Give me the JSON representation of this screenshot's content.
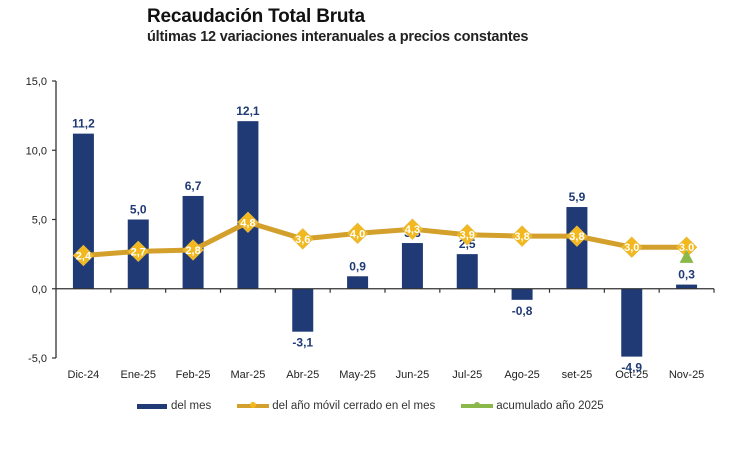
{
  "chart_data": {
    "type": "bar",
    "title": "Recaudación Total Bruta",
    "subtitle": "últimas 12 variaciones interanuales a precios constantes",
    "xlabel": "",
    "ylabel": "",
    "ylim": [
      -5,
      15
    ],
    "yticks": [
      -5,
      0,
      5,
      10,
      15
    ],
    "ytick_labels": [
      "-5,0",
      "0,0",
      "5,0",
      "10,0",
      "15,0"
    ],
    "grid": false,
    "legend_position": "bottom",
    "categories": [
      "Dic-24",
      "Ene-25",
      "Feb-25",
      "Mar-25",
      "Abr-25",
      "May-25",
      "Jun-25",
      "Jul-25",
      "Ago-25",
      "set-25",
      "Oct-25",
      "Nov-25"
    ],
    "series": [
      {
        "name": "del mes",
        "type": "bar",
        "color": "#1f3a75",
        "values": [
          11.2,
          5.0,
          6.7,
          12.1,
          -3.1,
          0.9,
          3.3,
          2.5,
          -0.8,
          5.9,
          -4.9,
          0.3
        ],
        "labels": [
          "11,2",
          "5,0",
          "6,7",
          "12,1",
          "-3,1",
          "0,9",
          "3,3",
          "2,5",
          "-0,8",
          "5,9",
          "-4,9",
          "0,3"
        ]
      },
      {
        "name": "del año móvil cerrado en el mes",
        "type": "line",
        "color": "#d4a02c",
        "marker_color": "#f2b81e",
        "values": [
          2.4,
          2.7,
          2.8,
          4.8,
          3.6,
          4.0,
          4.3,
          3.9,
          3.8,
          3.8,
          3.0,
          3.0
        ],
        "labels": [
          "2,4",
          "2,7",
          "2,8",
          "4,8",
          "3,6",
          "4,0",
          "4,3",
          "3,9",
          "3,8",
          "3,8",
          "3,0",
          "3,0"
        ]
      },
      {
        "name": "acumulado año 2025",
        "type": "line",
        "color": "#8ab84a",
        "values": [
          null,
          null,
          null,
          null,
          null,
          null,
          null,
          null,
          null,
          null,
          null,
          2.3
        ],
        "labels": []
      }
    ]
  }
}
